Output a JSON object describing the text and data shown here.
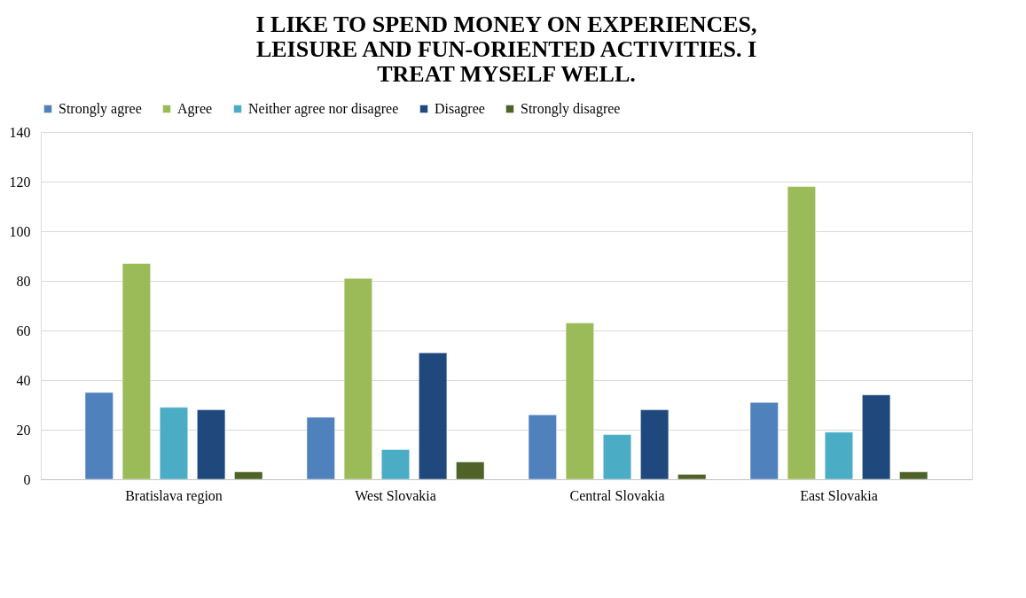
{
  "chart_data": {
    "type": "bar",
    "title": [
      "I LIKE TO SPEND MONEY ON EXPERIENCES,",
      "LEISURE AND FUN-ORIENTED ACTIVITIES. I",
      "TREAT MYSELF WELL."
    ],
    "categories": [
      "Bratislava region",
      "West Slovakia",
      "Central Slovakia",
      "East Slovakia"
    ],
    "series": [
      {
        "name": "Strongly agree",
        "color": "#4f81bd",
        "values": [
          35,
          25,
          26,
          31
        ]
      },
      {
        "name": "Agree",
        "color": "#9bbb59",
        "values": [
          87,
          81,
          63,
          118
        ]
      },
      {
        "name": "Neither agree nor disagree",
        "color": "#4bacc6",
        "values": [
          29,
          12,
          18,
          19
        ]
      },
      {
        "name": "Disagree",
        "color": "#1f497d",
        "values": [
          28,
          51,
          28,
          34
        ]
      },
      {
        "name": "Strongly disagree",
        "color": "#4f6228",
        "values": [
          3,
          7,
          2,
          3
        ]
      }
    ],
    "ylim": [
      0,
      140
    ],
    "yticks": [
      0,
      20,
      40,
      60,
      80,
      100,
      120,
      140
    ],
    "grid": "y",
    "legend": "top"
  }
}
